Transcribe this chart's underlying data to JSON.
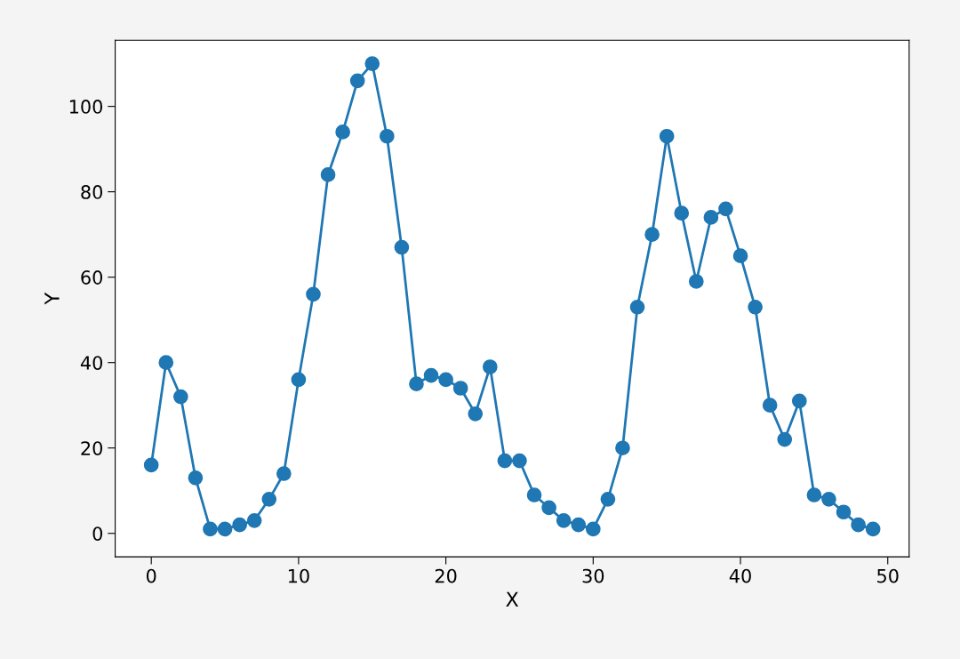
{
  "chart_data": {
    "type": "line",
    "xlabel": "X",
    "ylabel": "Y",
    "x": [
      0,
      1,
      2,
      3,
      4,
      5,
      6,
      7,
      8,
      9,
      10,
      11,
      12,
      13,
      14,
      15,
      16,
      17,
      18,
      19,
      20,
      21,
      22,
      23,
      24,
      25,
      26,
      27,
      28,
      29,
      30,
      31,
      32,
      33,
      34,
      35,
      36,
      37,
      38,
      39,
      40,
      41,
      42,
      43,
      44,
      45,
      46,
      47,
      48,
      49
    ],
    "series": [
      {
        "color": "#1f77b4",
        "values": [
          16,
          40,
          32,
          13,
          1,
          1,
          2,
          3,
          8,
          14,
          36,
          56,
          84,
          94,
          106,
          110,
          93,
          67,
          35,
          37,
          36,
          34,
          28,
          39,
          17,
          17,
          9,
          6,
          3,
          2,
          1,
          8,
          20,
          53,
          70,
          93,
          75,
          59,
          74,
          76,
          65,
          53,
          30,
          22,
          31,
          9,
          8,
          5,
          2,
          1
        ]
      }
    ],
    "xlim": [
      -2.45,
      51.45
    ],
    "ylim": [
      -5.5,
      115.5
    ],
    "xticks": [
      0,
      10,
      20,
      30,
      40,
      50
    ],
    "yticks": [
      0,
      20,
      40,
      60,
      80,
      100
    ],
    "marker": "circle",
    "line_style": "solid",
    "grid": false
  }
}
